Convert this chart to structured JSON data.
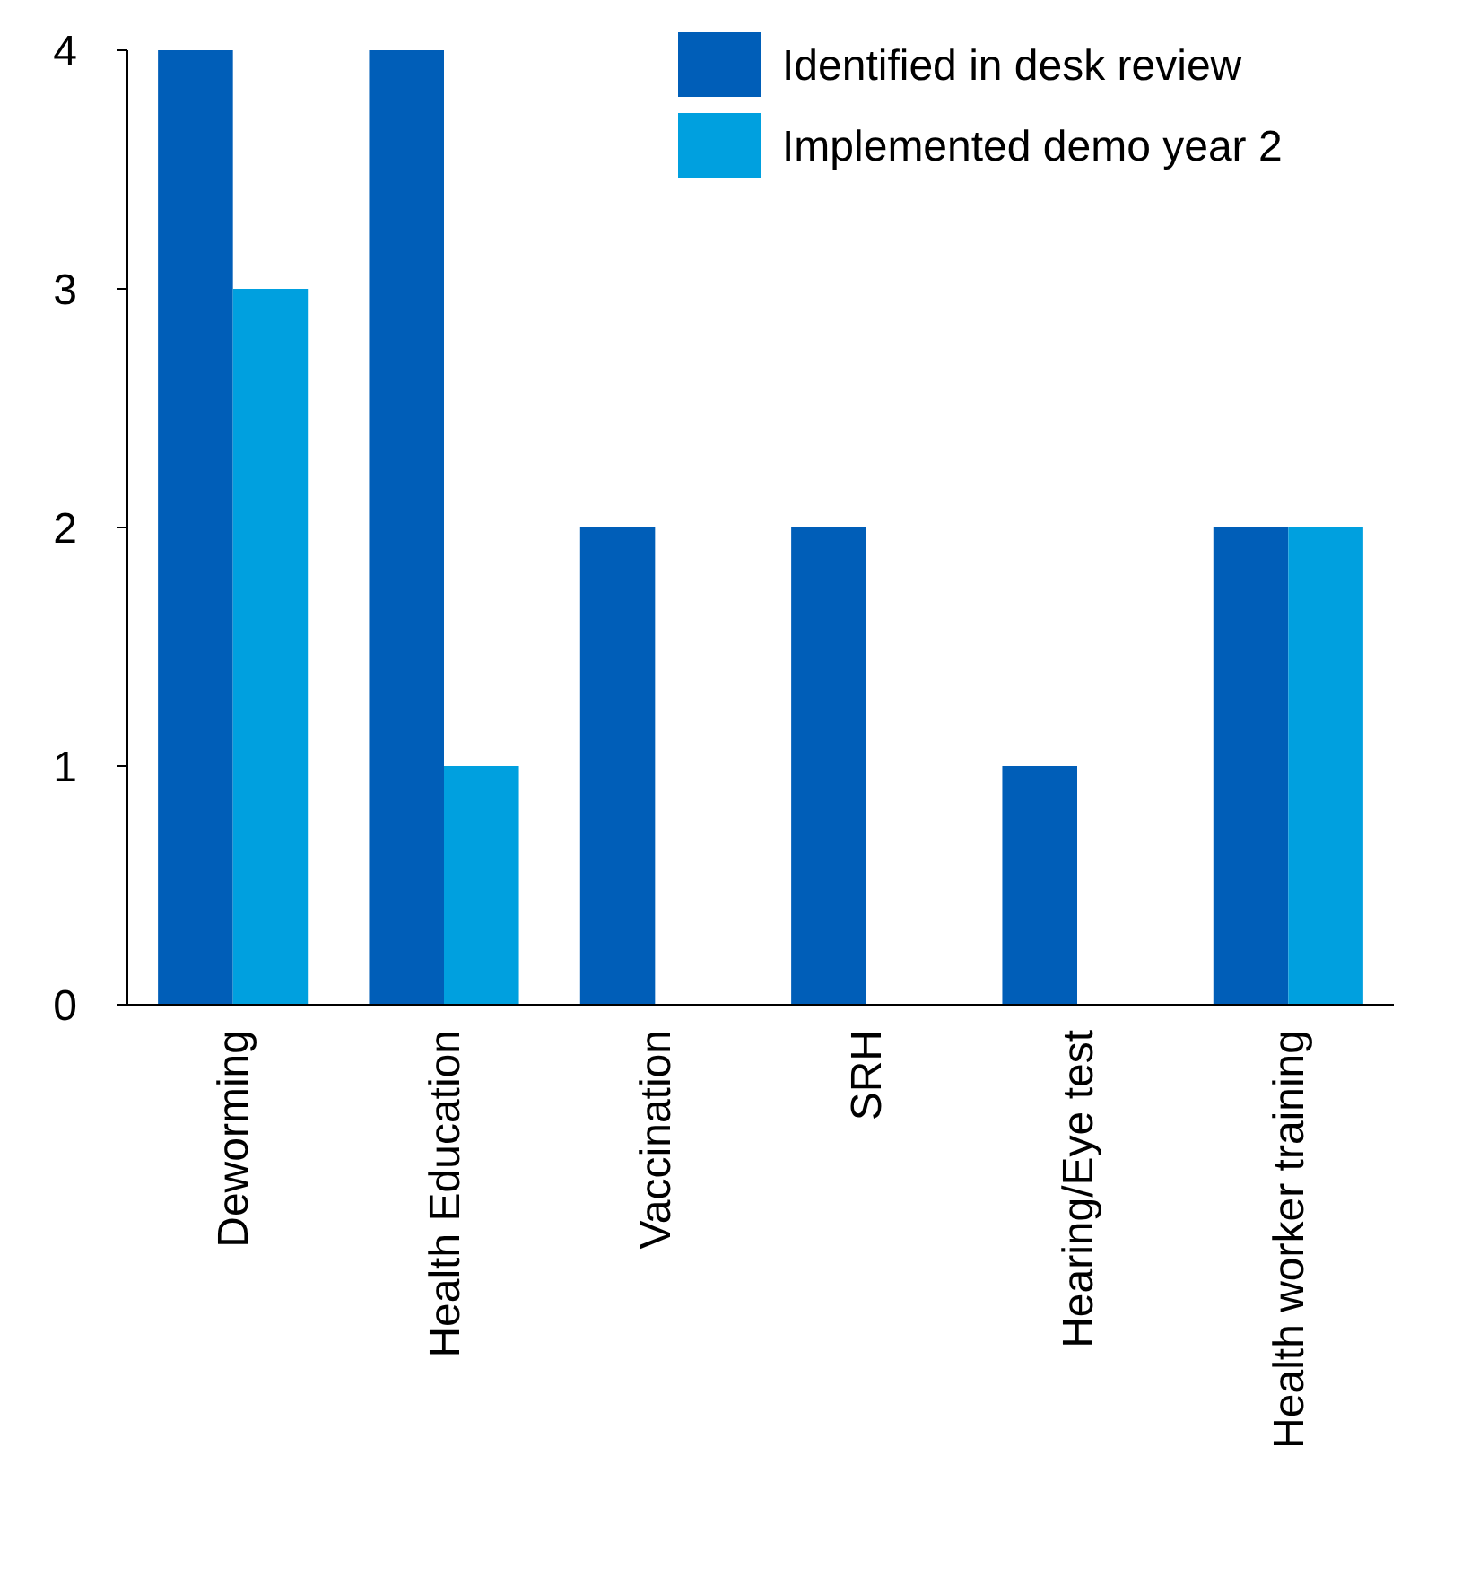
{
  "chart_data": {
    "type": "bar",
    "categories": [
      "Deworming",
      "Health Education",
      "Vaccination",
      "SRH",
      "Hearing/Eye test",
      "Health worker training"
    ],
    "series": [
      {
        "name": "Identified in desk review",
        "color": "#005eb8",
        "values": [
          4,
          4,
          2,
          2,
          1,
          2
        ]
      },
      {
        "name": "Implemented demo year 2",
        "color": "#00a0df",
        "values": [
          3,
          1,
          0,
          0,
          0,
          2
        ]
      }
    ],
    "ylim": [
      0,
      4
    ],
    "yticks": [
      0,
      1,
      2,
      3,
      4
    ],
    "grid": false,
    "legend": "top right"
  }
}
